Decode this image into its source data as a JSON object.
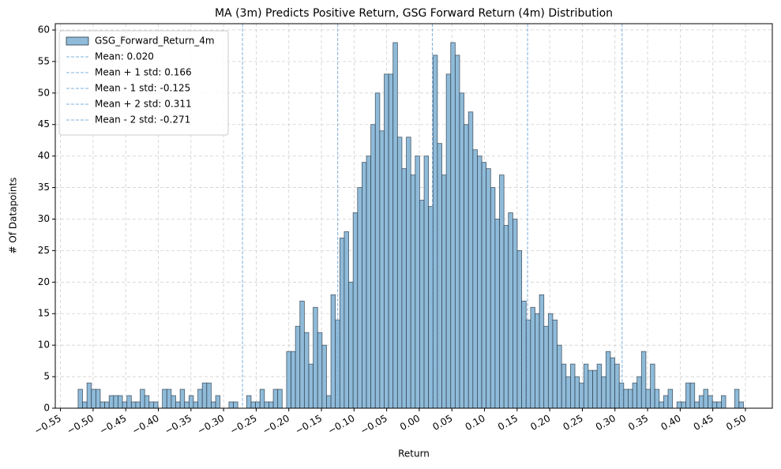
{
  "chart_data": {
    "type": "histogram",
    "title": "MA (3m) Predicts Positive Return, GSG Forward Return (4m) Distribution",
    "xlabel": "Return",
    "ylabel": "# Of Datapoints",
    "series": [
      {
        "name": "GSG_Forward_Return_4m",
        "color": "#8fbbd9",
        "edgecolor": "#2a3a48",
        "bins": [
          -0.523,
          -0.5162,
          -0.5094,
          -0.5026,
          -0.4958,
          -0.489,
          -0.4822,
          -0.4754,
          -0.4686,
          -0.4618,
          -0.455,
          -0.4482,
          -0.4414,
          -0.4346,
          -0.4278,
          -0.421,
          -0.4142,
          -0.4074,
          -0.4006,
          -0.3938,
          -0.387,
          -0.3802,
          -0.3734,
          -0.3666,
          -0.3598,
          -0.353,
          -0.3462,
          -0.3394,
          -0.3326,
          -0.3258,
          -0.319,
          -0.3122,
          -0.3054,
          -0.2986,
          -0.2918,
          -0.285,
          -0.2782,
          -0.2714,
          -0.2646,
          -0.2578,
          -0.251,
          -0.2442,
          -0.2374,
          -0.2306,
          -0.2238,
          -0.217,
          -0.2102,
          -0.2034,
          -0.1966,
          -0.1898,
          -0.183,
          -0.1762,
          -0.1694,
          -0.1626,
          -0.1558,
          -0.149,
          -0.1422,
          -0.1354,
          -0.1286,
          -0.1218,
          -0.115,
          -0.1082,
          -0.1014,
          -0.0946,
          -0.0878,
          -0.081,
          -0.0742,
          -0.0674,
          -0.0606,
          -0.0538,
          -0.047,
          -0.0402,
          -0.0334,
          -0.0266,
          -0.0198,
          -0.013,
          -0.0062,
          0.0006,
          0.0074,
          0.0142,
          0.021,
          0.0278,
          0.0346,
          0.0414,
          0.0482,
          0.055,
          0.0618,
          0.0686,
          0.0754,
          0.0822,
          0.089,
          0.0958,
          0.1026,
          0.1094,
          0.1162,
          0.123,
          0.1298,
          0.1366,
          0.1434,
          0.1502,
          0.157,
          0.1638,
          0.1706,
          0.1774,
          0.1842,
          0.191,
          0.1978,
          0.2046,
          0.2114,
          0.2182,
          0.225,
          0.2318,
          0.2386,
          0.2454,
          0.2522,
          0.259,
          0.2658,
          0.2726,
          0.2794,
          0.2862,
          0.293,
          0.2998,
          0.3066,
          0.3134,
          0.3202,
          0.327,
          0.3338,
          0.3406,
          0.3474,
          0.3542,
          0.361,
          0.3678,
          0.3746,
          0.3814,
          0.3882,
          0.395,
          0.4018,
          0.4086,
          0.4154,
          0.4222,
          0.429,
          0.4358,
          0.4426,
          0.4494,
          0.4562,
          0.463,
          0.4698,
          0.4766,
          0.4834,
          0.4902,
          0.497
        ],
        "values": [
          3,
          1,
          4,
          3,
          3,
          1,
          1,
          2,
          2,
          2,
          1,
          2,
          1,
          1,
          3,
          2,
          1,
          1,
          0,
          3,
          3,
          2,
          1,
          3,
          1,
          2,
          1,
          3,
          4,
          4,
          1,
          2,
          0,
          0,
          1,
          1,
          0,
          0,
          2,
          1,
          1,
          3,
          1,
          1,
          3,
          3,
          0,
          9,
          9,
          13,
          17,
          12,
          7,
          16,
          12,
          10,
          2,
          18,
          14,
          27,
          28,
          20,
          31,
          35,
          39,
          40,
          45,
          50,
          44,
          53,
          53,
          58,
          43,
          38,
          43,
          37,
          40,
          33,
          40,
          32,
          56,
          42,
          37,
          53,
          58,
          56,
          50,
          45,
          47,
          41,
          40,
          39,
          38,
          35,
          30,
          37,
          29,
          31,
          30,
          25,
          17,
          14,
          16,
          15,
          18,
          13,
          15,
          14,
          10,
          7,
          5,
          7,
          5,
          4,
          7,
          6,
          6,
          7,
          5,
          9,
          8,
          7,
          4,
          3,
          3,
          4,
          5,
          9,
          3,
          7,
          3,
          1,
          2,
          3,
          0,
          1,
          1,
          4,
          4,
          1,
          2,
          3,
          2,
          1,
          1,
          2,
          0,
          0,
          3,
          1
        ]
      }
    ],
    "vlines": [
      {
        "value": 0.02,
        "label": "Mean: 0.020"
      },
      {
        "value": 0.166,
        "label": "Mean + 1 std: 0.166"
      },
      {
        "value": -0.125,
        "label": "Mean - 1 std: -0.125"
      },
      {
        "value": 0.311,
        "label": "Mean + 2 std: 0.311"
      },
      {
        "value": -0.271,
        "label": "Mean - 2 std: -0.271"
      }
    ],
    "vline_color": "#7fb0dc",
    "xlim": [
      -0.558,
      0.5412
    ],
    "ylim": [
      0,
      61
    ],
    "xticks": [
      {
        "value": -0.55,
        "label": "−0.55"
      },
      {
        "value": -0.5,
        "label": "−0.50"
      },
      {
        "value": -0.45,
        "label": "−0.45"
      },
      {
        "value": -0.4,
        "label": "−0.40"
      },
      {
        "value": -0.35,
        "label": "−0.35"
      },
      {
        "value": -0.3,
        "label": "−0.30"
      },
      {
        "value": -0.25,
        "label": "−0.25"
      },
      {
        "value": -0.2,
        "label": "−0.20"
      },
      {
        "value": -0.15,
        "label": "−0.15"
      },
      {
        "value": -0.1,
        "label": "−0.10"
      },
      {
        "value": -0.05,
        "label": "−0.05"
      },
      {
        "value": 0,
        "label": "0.00"
      },
      {
        "value": 0.05,
        "label": "0.05"
      },
      {
        "value": 0.1,
        "label": "0.10"
      },
      {
        "value": 0.15,
        "label": "0.15"
      },
      {
        "value": 0.2,
        "label": "0.20"
      },
      {
        "value": 0.25,
        "label": "0.25"
      },
      {
        "value": 0.3,
        "label": "0.30"
      },
      {
        "value": 0.35,
        "label": "0.35"
      },
      {
        "value": 0.4,
        "label": "0.40"
      },
      {
        "value": 0.45,
        "label": "0.45"
      },
      {
        "value": 0.5,
        "label": "0.50"
      }
    ],
    "yticks": [
      0,
      5,
      10,
      15,
      20,
      25,
      30,
      35,
      40,
      45,
      50,
      55,
      60
    ],
    "grid": true,
    "legend": "upper left"
  }
}
